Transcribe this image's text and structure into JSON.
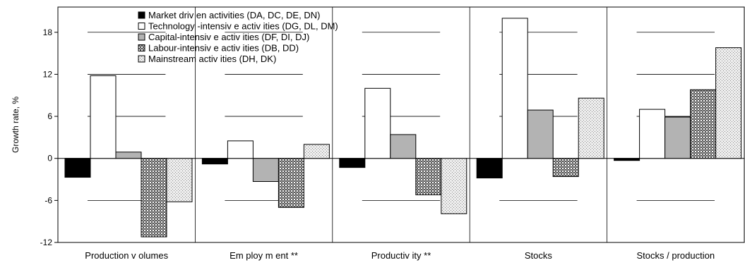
{
  "chart_data": {
    "type": "bar",
    "categories": [
      "Production v olumes",
      "Em ploy m ent **",
      "Productiv ity  **",
      "Stocks",
      "Stocks / production"
    ],
    "series": [
      {
        "name": "Market driv en activities (DA, DC, DE, DN)",
        "fill": "solid-black",
        "values": [
          -2.7,
          -0.8,
          -1.3,
          -2.8,
          -0.3
        ]
      },
      {
        "name": "Technology -intensiv e activ ities (DG, DL, DM)",
        "fill": "white",
        "values": [
          11.8,
          2.5,
          10.0,
          20.0,
          7.0
        ]
      },
      {
        "name": "Capital-intensiv e activ ities (DF, DI, DJ)",
        "fill": "gray",
        "values": [
          0.9,
          -3.3,
          3.4,
          6.9,
          5.9
        ]
      },
      {
        "name": "Labour-intensiv e activ ities (DB, DD)",
        "fill": "crosshatch",
        "values": [
          -11.2,
          -7.0,
          -5.2,
          -2.6,
          9.8
        ]
      },
      {
        "name": "Mainstream activ ities (DH, DK)",
        "fill": "dotted",
        "values": [
          -6.2,
          2.0,
          -7.9,
          8.6,
          15.8
        ]
      }
    ],
    "ylabel": "Growth rate, %",
    "ylim": [
      -12,
      21.6
    ],
    "yticks": [
      -12,
      -6,
      0,
      6,
      12,
      18
    ],
    "ytick_labels": [
      "-12",
      "-6",
      "0",
      "6",
      "12",
      "18"
    ],
    "legend_position": "top-left",
    "grid": true
  },
  "colors": {
    "series": [
      "#000000",
      "#ffffff",
      "#b3b3b3",
      "#808080",
      "#e6e6e6"
    ],
    "axis": "#000000"
  }
}
